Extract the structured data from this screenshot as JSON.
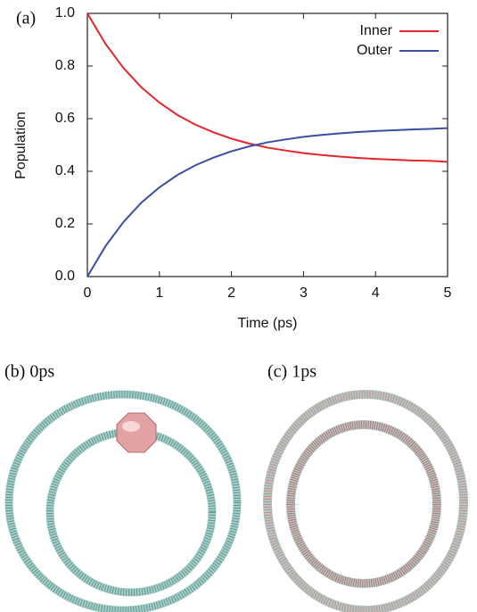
{
  "chart_data": {
    "type": "line",
    "panel_label": "(a)",
    "xlabel": "Time (ps)",
    "ylabel": "Population",
    "x": [
      0,
      0.25,
      0.5,
      0.75,
      1,
      1.25,
      1.5,
      1.75,
      2,
      2.25,
      2.5,
      2.75,
      3,
      3.25,
      3.5,
      3.75,
      4,
      4.25,
      4.5,
      4.75,
      5
    ],
    "series": [
      {
        "name": "Inner",
        "color": "#e3262b",
        "values": [
          1.0,
          0.885,
          0.793,
          0.719,
          0.661,
          0.614,
          0.577,
          0.548,
          0.524,
          0.505,
          0.49,
          0.479,
          0.469,
          0.462,
          0.456,
          0.451,
          0.447,
          0.444,
          0.441,
          0.44,
          0.436
        ]
      },
      {
        "name": "Outer",
        "color": "#3a4fa3",
        "values": [
          0.0,
          0.115,
          0.207,
          0.281,
          0.339,
          0.386,
          0.423,
          0.452,
          0.476,
          0.495,
          0.51,
          0.521,
          0.531,
          0.538,
          0.544,
          0.549,
          0.553,
          0.556,
          0.559,
          0.561,
          0.564
        ]
      }
    ],
    "xlim": [
      0,
      5
    ],
    "xticks": [
      0,
      1,
      2,
      3,
      4,
      5
    ],
    "ylim": [
      0,
      1
    ],
    "yticks": [
      {
        "value": 0,
        "label": "0.0"
      },
      0.2,
      0.4,
      0.6,
      0.8,
      {
        "value": 1,
        "label": "1.0"
      }
    ],
    "legend": "upper right"
  },
  "panels": [
    {
      "label": "(b) 0ps"
    },
    {
      "label": "(c) 1ps"
    }
  ]
}
